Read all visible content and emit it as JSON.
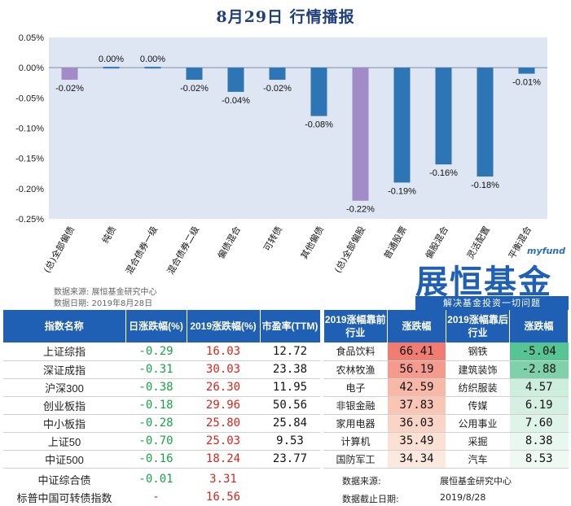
{
  "title": "8月29日  行情播报",
  "chart_data": {
    "type": "bar",
    "categories": [
      "(总)全部偏债",
      "纯债",
      "混合债券一级",
      "混合债券二级",
      "偏债混合",
      "可转债",
      "其他偏债",
      "(总)全部偏股",
      "普通股票",
      "偏股混合",
      "灵活配置",
      "平衡混合"
    ],
    "values": [
      -0.02,
      0.0,
      0.0,
      -0.02,
      -0.04,
      -0.02,
      -0.08,
      -0.22,
      -0.19,
      -0.16,
      -0.18,
      -0.01
    ],
    "labels": [
      "-0.02%",
      "0.00%",
      "0.00%",
      "-0.02%",
      "-0.04%",
      "-0.02%",
      "-0.08%",
      "-0.22%",
      "-0.19%",
      "-0.16%",
      "-0.18%",
      "-0.01%"
    ],
    "highlight": [
      0,
      7
    ],
    "ylim": [
      -0.25,
      0.05
    ],
    "yticks": [
      "0.05%",
      "0.00%",
      "-0.05%",
      "-0.10%",
      "-0.15%",
      "-0.20%",
      "-0.25%"
    ],
    "colors": {
      "bar": "#2e75b6",
      "highlight": "#a18cc8",
      "plot_bg": "#dde6f2"
    }
  },
  "source": {
    "line1": "数据来源: 展恒基金研究中心",
    "line2": "数据日期: 2019年8月28日"
  },
  "brand": {
    "my": "myfund",
    "name": "展恒基金",
    "slogan": "解决基金投资一切问题"
  },
  "index_table": {
    "headers": [
      "指数名称",
      "日涨跌幅(%)",
      "2019涨跌幅(%)",
      "市盈率(TTM)"
    ],
    "rows": [
      {
        "name": "上证综指",
        "day": "-0.29",
        "year": "16.03",
        "pe": "12.72"
      },
      {
        "name": "深证成指",
        "day": "-0.31",
        "year": "30.03",
        "pe": "23.38"
      },
      {
        "name": "沪深300",
        "day": "-0.38",
        "year": "26.30",
        "pe": "11.95"
      },
      {
        "name": "创业板指",
        "day": "-0.18",
        "year": "29.96",
        "pe": "50.56"
      },
      {
        "name": "中小板指",
        "day": "-0.28",
        "year": "25.80",
        "pe": "25.84"
      },
      {
        "name": "上证50",
        "day": "-0.70",
        "year": "25.03",
        "pe": "9.53"
      },
      {
        "name": "中证500",
        "day": "-0.16",
        "year": "18.24",
        "pe": "23.77"
      }
    ],
    "extra_rows": [
      {
        "name": "中证综合债",
        "day": "-0.01",
        "year": "3.31"
      },
      {
        "name": "标普中国可转债指数",
        "day": "-",
        "year": "16.56"
      }
    ]
  },
  "industry_table": {
    "headers": [
      "2019涨幅靠前行业",
      "涨跌幅",
      "2019涨幅靠后行业",
      "涨跌幅"
    ],
    "rows": [
      {
        "top": "食品饮料",
        "top_val": "66.41",
        "bot": "钢铁",
        "bot_val": "-5.04"
      },
      {
        "top": "农林牧渔",
        "top_val": "56.19",
        "bot": "建筑装饰",
        "bot_val": "-2.88"
      },
      {
        "top": "电子",
        "top_val": "42.59",
        "bot": "纺织服装",
        "bot_val": "4.57"
      },
      {
        "top": "非银金融",
        "top_val": "37.83",
        "bot": "传媒",
        "bot_val": "6.19"
      },
      {
        "top": "家用电器",
        "top_val": "36.03",
        "bot": "公用事业",
        "bot_val": "7.60"
      },
      {
        "top": "计算机",
        "top_val": "35.49",
        "bot": "采掘",
        "bot_val": "8.38"
      },
      {
        "top": "国防军工",
        "top_val": "34.34",
        "bot": "汽车",
        "bot_val": "8.53"
      }
    ],
    "colors": {
      "top": [
        "#f07c72",
        "#f59b8e",
        "#f8b8a8",
        "#f9c6b6",
        "#fad5c7",
        "#fbe0d3",
        "#fbe9e0"
      ],
      "bot": [
        "#57c493",
        "#7fd1aa",
        "#cdeedd",
        "#d5f0e2",
        "#dff4e9",
        "#e8f7ef",
        "#eef9f3"
      ]
    },
    "note_source_label": "数据来源:",
    "note_source_value": "展恒基金研究中心",
    "note_date_label": "数据截止日期:",
    "note_date_value": "2019/8/28"
  }
}
